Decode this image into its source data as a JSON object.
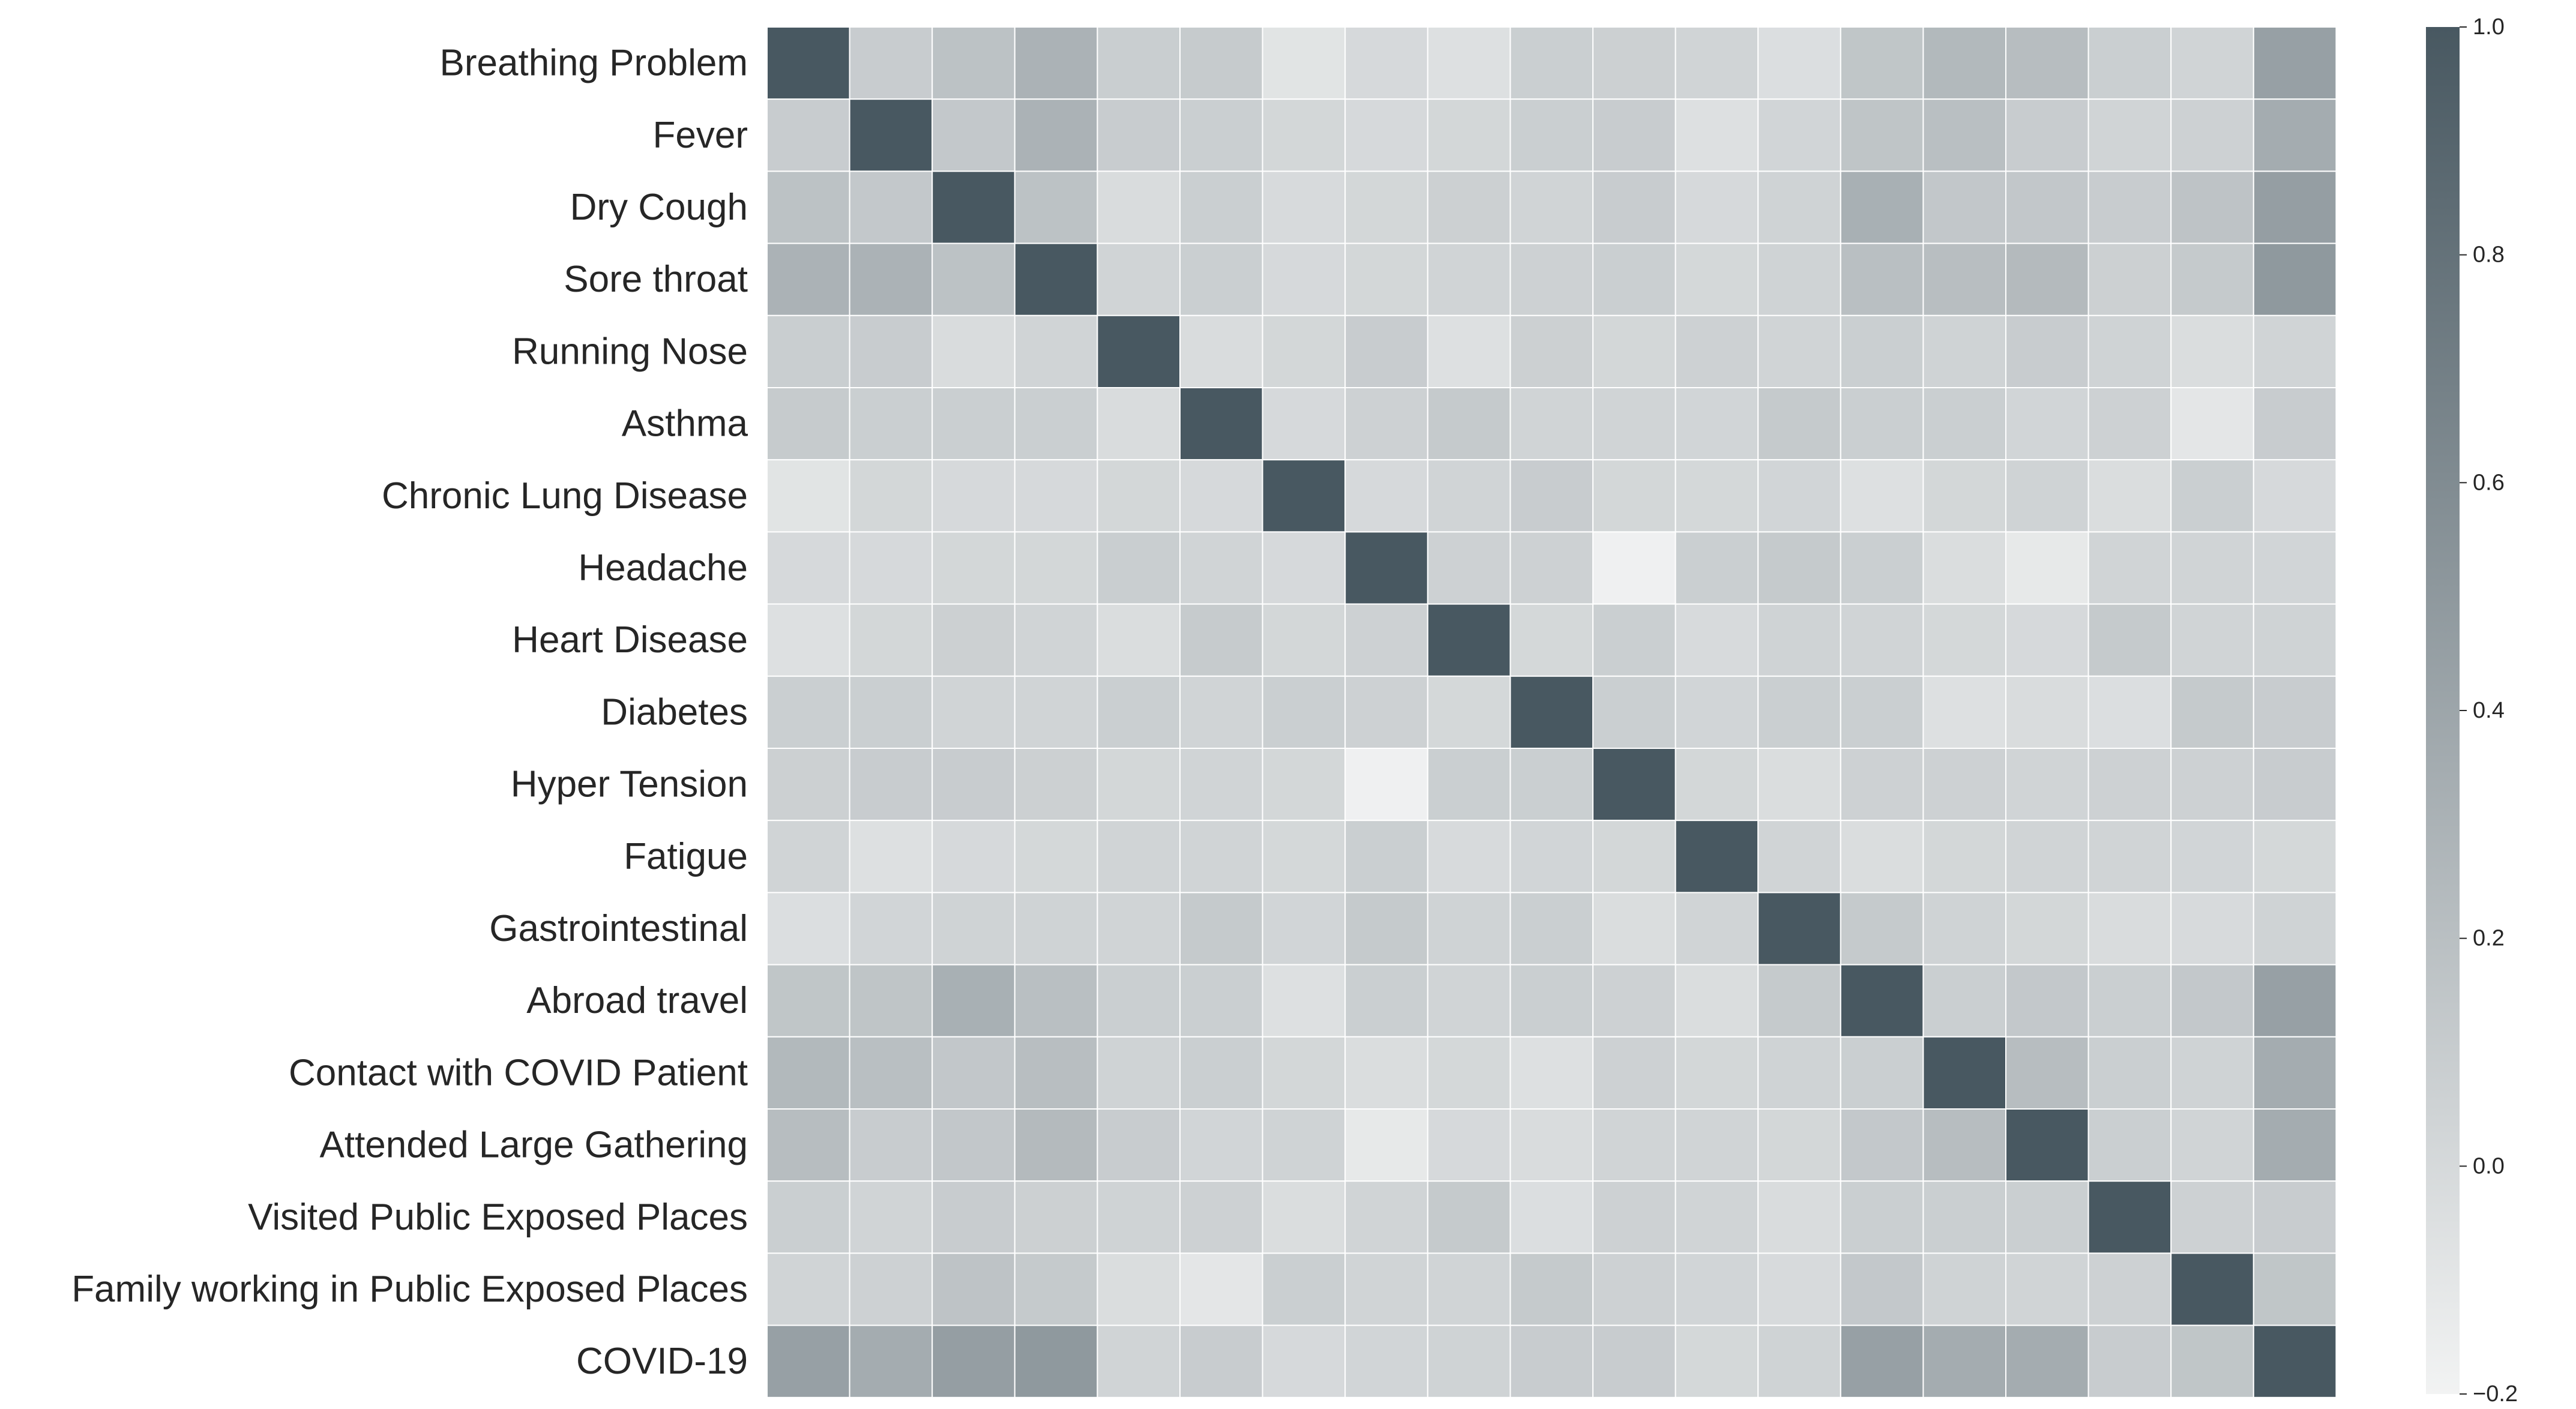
{
  "chart_data": {
    "type": "heatmap",
    "title": "",
    "xlabel": "",
    "ylabel": "",
    "labels": [
      "Breathing Problem",
      "Fever",
      "Dry Cough",
      "Sore throat",
      "Running Nose",
      "Asthma",
      "Chronic Lung Disease",
      "Headache",
      "Heart Disease",
      "Diabetes",
      "Hyper Tension",
      "Fatigue ",
      "Gastrointestinal ",
      "Abroad travel",
      "Contact with COVID Patient",
      "Attended Large Gathering",
      "Visited Public Exposed Places",
      "Family working in Public Exposed Places",
      "COVID-19"
    ],
    "x_tick_labels_shown": false,
    "matrix": [
      [
        1.0,
        0.1,
        0.18,
        0.3,
        0.09,
        0.11,
        -0.08,
        0.0,
        -0.05,
        0.08,
        0.07,
        0.04,
        -0.04,
        0.15,
        0.25,
        0.22,
        0.08,
        0.04,
        0.44
      ],
      [
        0.1,
        1.0,
        0.13,
        0.3,
        0.1,
        0.08,
        0.02,
        0.0,
        0.02,
        0.08,
        0.1,
        -0.05,
        0.03,
        0.16,
        0.2,
        0.1,
        0.04,
        0.06,
        0.35
      ],
      [
        0.18,
        0.13,
        1.0,
        0.18,
        -0.02,
        0.08,
        -0.01,
        0.02,
        0.07,
        0.04,
        0.1,
        0.0,
        0.05,
        0.32,
        0.14,
        0.14,
        0.1,
        0.17,
        0.46
      ],
      [
        0.3,
        0.3,
        0.18,
        1.0,
        0.04,
        0.08,
        0.0,
        0.02,
        0.04,
        0.06,
        0.08,
        0.01,
        0.05,
        0.2,
        0.21,
        0.24,
        0.07,
        0.12,
        0.5
      ],
      [
        0.09,
        0.1,
        -0.02,
        0.04,
        1.0,
        -0.02,
        0.02,
        0.1,
        -0.05,
        0.07,
        0.02,
        0.06,
        0.04,
        0.08,
        0.05,
        0.1,
        0.05,
        -0.03,
        0.04
      ],
      [
        0.11,
        0.08,
        0.08,
        0.08,
        -0.02,
        1.0,
        0.0,
        0.06,
        0.12,
        0.04,
        0.04,
        0.03,
        0.12,
        0.08,
        0.08,
        0.03,
        0.06,
        -0.1,
        0.1
      ],
      [
        -0.08,
        0.02,
        0.0,
        0.0,
        0.02,
        0.0,
        1.0,
        0.0,
        0.04,
        0.1,
        0.02,
        0.01,
        0.03,
        -0.05,
        0.02,
        0.05,
        -0.03,
        0.08,
        0.0
      ],
      [
        0.0,
        0.0,
        0.02,
        0.02,
        0.09,
        0.04,
        0.0,
        1.0,
        0.06,
        0.06,
        -0.18,
        0.08,
        0.12,
        0.08,
        -0.03,
        -0.12,
        0.04,
        0.04,
        0.03
      ],
      [
        -0.05,
        0.02,
        0.07,
        0.04,
        -0.03,
        0.11,
        0.02,
        0.06,
        1.0,
        0.01,
        0.08,
        -0.01,
        0.05,
        0.04,
        0.01,
        0.0,
        0.12,
        0.04,
        0.05
      ],
      [
        0.08,
        0.08,
        0.04,
        0.04,
        0.08,
        0.04,
        0.08,
        0.06,
        0.01,
        1.0,
        0.08,
        0.03,
        0.08,
        0.08,
        -0.05,
        -0.02,
        -0.04,
        0.12,
        0.1
      ],
      [
        0.07,
        0.1,
        0.1,
        0.07,
        0.02,
        0.04,
        0.02,
        -0.18,
        0.08,
        0.08,
        1.0,
        0.02,
        -0.03,
        0.06,
        0.06,
        0.04,
        0.06,
        0.06,
        0.1
      ],
      [
        0.04,
        -0.05,
        0.0,
        0.01,
        0.04,
        0.04,
        0.01,
        0.08,
        -0.01,
        0.03,
        0.02,
        1.0,
        0.04,
        -0.03,
        0.02,
        0.04,
        0.04,
        0.03,
        0.01
      ],
      [
        -0.04,
        0.03,
        0.05,
        0.05,
        0.04,
        0.12,
        0.03,
        0.12,
        0.05,
        0.08,
        -0.03,
        0.04,
        1.0,
        0.12,
        0.05,
        0.02,
        -0.02,
        -0.01,
        0.05
      ],
      [
        0.15,
        0.16,
        0.32,
        0.2,
        0.08,
        0.08,
        -0.05,
        0.08,
        0.04,
        0.08,
        0.06,
        -0.03,
        0.12,
        1.0,
        0.08,
        0.13,
        0.08,
        0.13,
        0.44
      ],
      [
        0.25,
        0.2,
        0.14,
        0.21,
        0.05,
        0.08,
        0.02,
        -0.03,
        0.01,
        -0.05,
        0.06,
        0.02,
        0.05,
        0.08,
        1.0,
        0.22,
        0.08,
        0.05,
        0.35
      ],
      [
        0.22,
        0.1,
        0.14,
        0.24,
        0.1,
        0.03,
        0.05,
        -0.12,
        0.0,
        -0.02,
        0.04,
        0.04,
        0.02,
        0.13,
        0.22,
        1.0,
        0.08,
        0.04,
        0.35
      ],
      [
        0.08,
        0.04,
        0.1,
        0.07,
        0.05,
        0.06,
        -0.03,
        0.04,
        0.12,
        -0.04,
        0.06,
        0.04,
        -0.02,
        0.08,
        0.08,
        0.08,
        1.0,
        0.06,
        0.1
      ],
      [
        0.04,
        0.06,
        0.17,
        0.12,
        -0.03,
        -0.1,
        0.08,
        0.04,
        0.04,
        0.12,
        0.06,
        0.03,
        -0.01,
        0.13,
        0.05,
        0.04,
        0.06,
        1.0,
        0.15
      ],
      [
        0.44,
        0.35,
        0.46,
        0.5,
        0.04,
        0.1,
        0.0,
        0.03,
        0.05,
        0.1,
        0.1,
        0.01,
        0.05,
        0.44,
        0.35,
        0.35,
        0.1,
        0.15,
        1.0
      ]
    ],
    "colorbar": {
      "min": -0.2,
      "max": 1.0,
      "ticks": [
        -0.2,
        0.0,
        0.2,
        0.4,
        0.6,
        0.8,
        1.0
      ],
      "tick_labels": [
        "−0.2",
        "0.0",
        "0.2",
        "0.4",
        "0.6",
        "0.8",
        "1.0"
      ],
      "color_low": "#f2f3f3",
      "color_high": "#485861"
    },
    "cell_border_color": "#ffffff"
  }
}
